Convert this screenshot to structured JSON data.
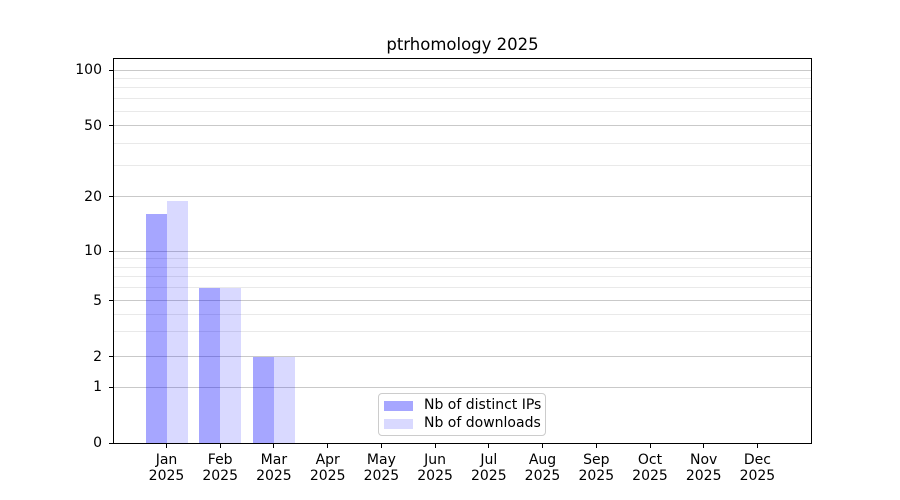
{
  "title": "ptrhomology 2025",
  "legend": {
    "items": [
      {
        "label": "Nb of distinct IPs",
        "color": "rgba(0,0,255,0.35)"
      },
      {
        "label": "Nb of downloads",
        "color": "rgba(0,0,255,0.15)"
      }
    ],
    "position": "inside-bottom-center"
  },
  "chart_data": {
    "type": "bar",
    "title": "ptrhomology 2025",
    "categories": [
      "Jan",
      "Feb",
      "Mar",
      "Apr",
      "May",
      "Jun",
      "Jul",
      "Aug",
      "Sep",
      "Oct",
      "Nov",
      "Dec"
    ],
    "category_year": "2025",
    "series": [
      {
        "name": "Nb of distinct IPs",
        "color": "rgba(0,0,255,0.35)",
        "values": [
          16,
          6,
          2,
          0,
          0,
          0,
          0,
          0,
          0,
          0,
          0,
          0
        ]
      },
      {
        "name": "Nb of downloads",
        "color": "rgba(0,0,255,0.15)",
        "values": [
          19,
          6,
          2,
          0,
          0,
          0,
          0,
          0,
          0,
          0,
          0,
          0
        ]
      }
    ],
    "y_axis": {
      "scale": "log-like",
      "tick_values": [
        0,
        1,
        2,
        5,
        10,
        20,
        50,
        100
      ],
      "minor_gridline_values": [
        3,
        4,
        6,
        7,
        8,
        9,
        30,
        40,
        60,
        70,
        80,
        90
      ],
      "grid": true
    },
    "x_axis": {
      "grid": false
    }
  }
}
